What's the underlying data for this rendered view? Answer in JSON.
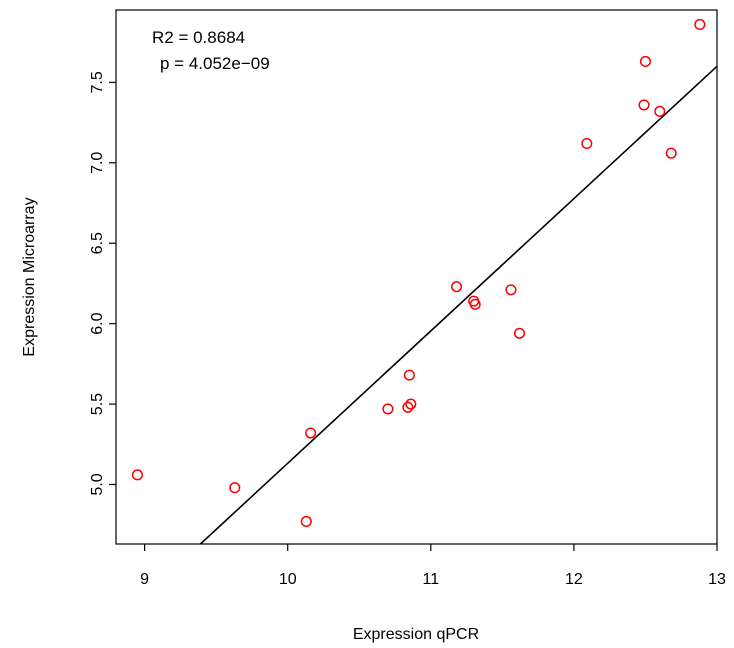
{
  "chart_data": {
    "type": "scatter",
    "title": "",
    "xlabel": "Expression qPCR",
    "ylabel": "Expression Microarray",
    "xlim": [
      8.8,
      13.0
    ],
    "ylim": [
      4.63,
      7.95
    ],
    "x_ticks": [
      9,
      10,
      11,
      12,
      13
    ],
    "x_tick_labels": [
      "9",
      "10",
      "11",
      "12",
      "13"
    ],
    "y_ticks": [
      5.0,
      5.5,
      6.0,
      6.5,
      7.0,
      7.5
    ],
    "y_tick_labels": [
      "5.0",
      "5.5",
      "6.0",
      "6.5",
      "7.0",
      "7.5"
    ],
    "grid": false,
    "point_color": "#ff0000",
    "line_color": "#000000",
    "points": [
      {
        "x": 8.95,
        "y": 5.06
      },
      {
        "x": 9.63,
        "y": 4.98
      },
      {
        "x": 10.13,
        "y": 4.77
      },
      {
        "x": 10.16,
        "y": 5.32
      },
      {
        "x": 10.7,
        "y": 5.47
      },
      {
        "x": 10.84,
        "y": 5.48
      },
      {
        "x": 10.85,
        "y": 5.68
      },
      {
        "x": 10.86,
        "y": 5.5
      },
      {
        "x": 11.18,
        "y": 6.23
      },
      {
        "x": 11.3,
        "y": 6.14
      },
      {
        "x": 11.31,
        "y": 6.12
      },
      {
        "x": 11.56,
        "y": 6.21
      },
      {
        "x": 11.62,
        "y": 5.94
      },
      {
        "x": 12.09,
        "y": 7.12
      },
      {
        "x": 12.49,
        "y": 7.36
      },
      {
        "x": 12.5,
        "y": 7.63
      },
      {
        "x": 12.6,
        "y": 7.32
      },
      {
        "x": 12.68,
        "y": 7.06
      },
      {
        "x": 12.88,
        "y": 7.86
      }
    ],
    "regression_line": {
      "x": [
        9.39,
        13.0
      ],
      "y": [
        4.63,
        7.6
      ]
    },
    "annotations": [
      "R2 = 0.8684",
      "p = 4.052e−09"
    ]
  }
}
